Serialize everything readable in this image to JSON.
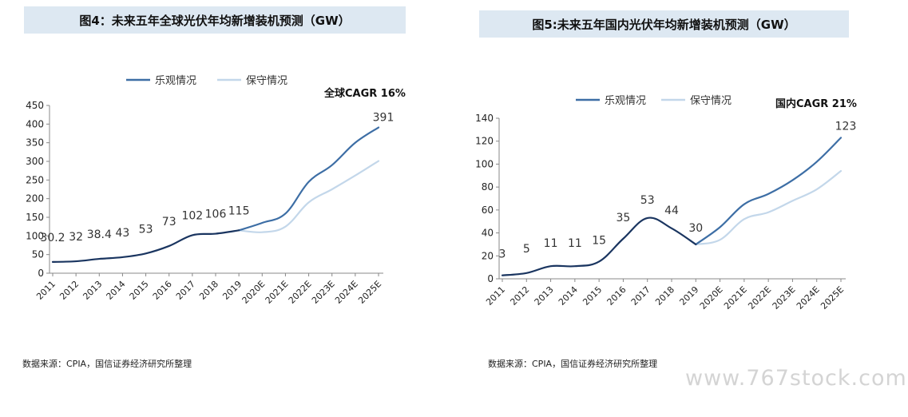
{
  "chart_data": [
    {
      "type": "line",
      "title": "图4：未来五年全球光伏年均新增装机预测（GW）",
      "categories": [
        "2011",
        "2012",
        "2013",
        "2014",
        "2015",
        "2016",
        "2017",
        "2018",
        "2019",
        "2020E",
        "2021E",
        "2022E",
        "2023E",
        "2024E",
        "2025E"
      ],
      "series": [
        {
          "name": "乐观情况",
          "color": "#3d6ea5",
          "values": [
            null,
            null,
            null,
            null,
            null,
            null,
            null,
            null,
            115,
            135,
            160,
            245,
            290,
            350,
            391
          ]
        },
        {
          "name": "保守情况",
          "color": "#c3d7ea",
          "values": [
            null,
            null,
            null,
            null,
            null,
            null,
            null,
            null,
            115,
            110,
            125,
            190,
            225,
            262,
            301
          ]
        },
        {
          "name": "",
          "color": "#1a3560",
          "values": [
            30.2,
            32,
            38.4,
            43,
            53,
            73,
            102,
            106,
            115,
            null,
            null,
            null,
            null,
            null,
            null
          ]
        }
      ],
      "data_labels": [
        {
          "index": 0,
          "text": "30.2"
        },
        {
          "index": 1,
          "text": "32"
        },
        {
          "index": 2,
          "text": "38.4"
        },
        {
          "index": 3,
          "text": "43"
        },
        {
          "index": 4,
          "text": "53"
        },
        {
          "index": 5,
          "text": "73"
        },
        {
          "index": 6,
          "text": "102"
        },
        {
          "index": 7,
          "text": "106"
        },
        {
          "index": 8,
          "text": "115"
        },
        {
          "index": 14,
          "text": "391"
        }
      ],
      "annotation": "全球CAGR 16%",
      "ylim": [
        0,
        450
      ],
      "yticks": [
        0,
        50,
        100,
        150,
        200,
        250,
        300,
        350,
        400,
        450
      ],
      "legend": "top",
      "source": "数据来源：CPIA，国信证券经济研究所整理"
    },
    {
      "type": "line",
      "title": "图5:未来五年国内光伏年均新增装机预测（GW）",
      "categories": [
        "2011",
        "2012",
        "2013",
        "2014",
        "2015",
        "2016",
        "2017",
        "2018",
        "2019",
        "2020E",
        "2021E",
        "2022E",
        "2023E",
        "2024E",
        "2025E"
      ],
      "series": [
        {
          "name": "乐观情况",
          "color": "#3d6ea5",
          "values": [
            null,
            null,
            null,
            null,
            null,
            null,
            null,
            null,
            30,
            45,
            65,
            74,
            86,
            102,
            123
          ]
        },
        {
          "name": "保守情况",
          "color": "#c3d7ea",
          "values": [
            null,
            null,
            null,
            null,
            null,
            null,
            null,
            null,
            30,
            34,
            52,
            58,
            68,
            78,
            94
          ]
        },
        {
          "name": "",
          "color": "#1a3560",
          "values": [
            3,
            5,
            11,
            11,
            15,
            35,
            53,
            44,
            30,
            null,
            null,
            null,
            null,
            null,
            null
          ]
        }
      ],
      "data_labels": [
        {
          "index": 0,
          "text": "3"
        },
        {
          "index": 1,
          "text": "5"
        },
        {
          "index": 2,
          "text": "11"
        },
        {
          "index": 3,
          "text": "11"
        },
        {
          "index": 4,
          "text": "15"
        },
        {
          "index": 5,
          "text": "35"
        },
        {
          "index": 6,
          "text": "53"
        },
        {
          "index": 7,
          "text": "44"
        },
        {
          "index": 8,
          "text": "30"
        },
        {
          "index": 14,
          "text": "123"
        }
      ],
      "annotation": "国内CAGR 21%",
      "ylim": [
        0,
        140
      ],
      "yticks": [
        0,
        20,
        40,
        60,
        80,
        100,
        120,
        140
      ],
      "legend": "top",
      "source": "数据来源：CPIA，国信证券经济研究所整理"
    }
  ],
  "watermark": "www.767stock.com"
}
